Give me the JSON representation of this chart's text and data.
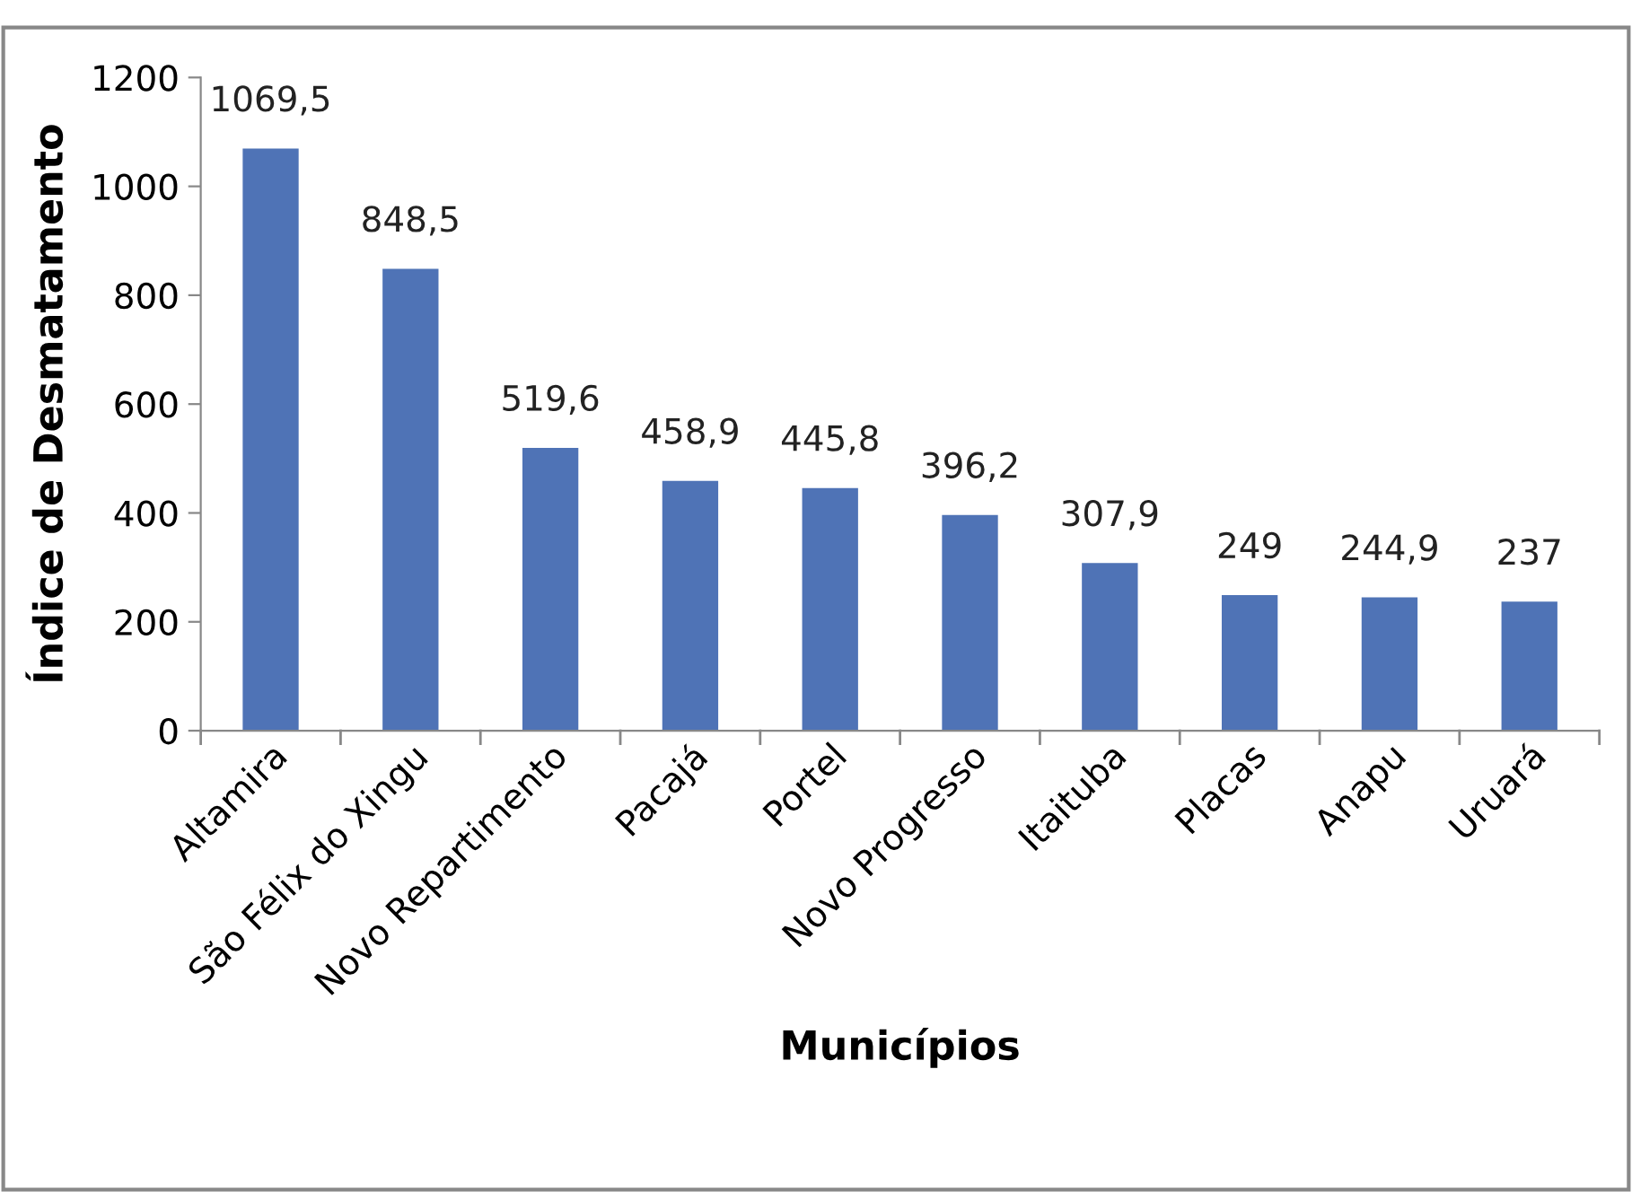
{
  "chart_data": {
    "type": "bar",
    "xlabel": "Municípios",
    "ylabel": "Índice de Desmatamento",
    "categories": [
      "Altamira",
      "São Félix do Xingu",
      "Novo Repartimento",
      "Pacajá",
      "Portel",
      "Novo Progresso",
      "Itaituba",
      "Placas",
      "Anapu",
      "Uruará"
    ],
    "values": [
      1069.5,
      848.5,
      519.6,
      458.9,
      445.8,
      396.2,
      307.9,
      249,
      244.9,
      237
    ],
    "value_labels": [
      "1069,5",
      "848,5",
      "519,6",
      "458,9",
      "445,8",
      "396,2",
      "307,9",
      "249",
      "244,9",
      "237"
    ],
    "color": "#4f73b6",
    "ylim": [
      0,
      1200
    ],
    "yticks": [
      0,
      200,
      400,
      600,
      800,
      1000,
      1200
    ],
    "grid": false,
    "legend": false
  }
}
